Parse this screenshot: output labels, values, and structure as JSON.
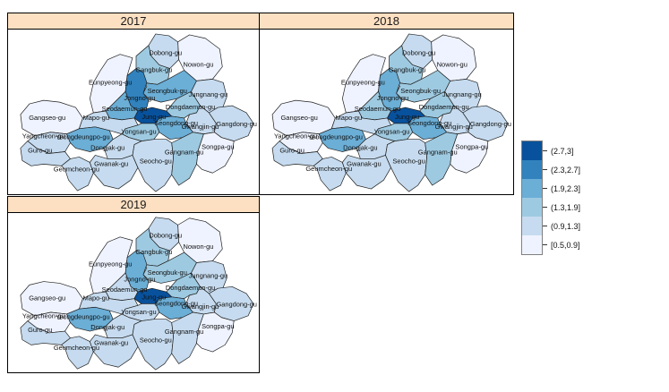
{
  "figure": {
    "background": "#ffffff"
  },
  "facets": [
    {
      "label": "2017"
    },
    {
      "label": "2018"
    },
    {
      "label": "2019"
    }
  ],
  "legend": {
    "items": [
      {
        "label": "(2.7,3]",
        "color": "#08519c"
      },
      {
        "label": "(2.3,2.7]",
        "color": "#3182bd"
      },
      {
        "label": "(1.9,2.3]",
        "color": "#6baed6"
      },
      {
        "label": "(1.3,1.9]",
        "color": "#9ecae1"
      },
      {
        "label": "(0.9,1.3]",
        "color": "#c6dbef"
      },
      {
        "label": "[0.5,0.9]",
        "color": "#eff3ff"
      }
    ]
  },
  "colors": {
    "strip_bg": "#fde0c2",
    "strip_border": "#000000",
    "panel_border": "#000000",
    "district_stroke": "#1f1f1f",
    "legend_border": "#808080",
    "dark_label_text": "#ffffff"
  },
  "chart_data": {
    "type": "choropleth",
    "facets": [
      "2017",
      "2018",
      "2019"
    ],
    "legend_bins_dark_to_light": [
      "(2.7,3]",
      "(2.3,2.7]",
      "(1.9,2.3]",
      "(1.3,1.9]",
      "(0.9,1.3]",
      "[0.5,0.9]"
    ],
    "palette_light_to_dark": [
      "#eff3ff",
      "#c6dbef",
      "#9ecae1",
      "#6baed6",
      "#3182bd",
      "#08519c"
    ],
    "bin_ranges_light_to_dark": [
      "[0.5,0.9]",
      "(0.9,1.3]",
      "(1.3,1.9]",
      "(1.9,2.3]",
      "(2.3,2.7]",
      "(2.7,3]"
    ],
    "districts": [
      {
        "name": "Dobong-gu",
        "bin_index_by_year": {
          "2017": 2,
          "2018": 2,
          "2019": 2
        }
      },
      {
        "name": "Nowon-gu",
        "bin_index_by_year": {
          "2017": 1,
          "2018": 1,
          "2019": 1
        }
      },
      {
        "name": "Gangbuk-gu",
        "bin_index_by_year": {
          "2017": 3,
          "2018": 3,
          "2019": 3
        }
      },
      {
        "name": "Eunpyeong-gu",
        "bin_index_by_year": {
          "2017": 1,
          "2018": 1,
          "2019": 1
        }
      },
      {
        "name": "Seongbuk-gu",
        "bin_index_by_year": {
          "2017": 4,
          "2018": 3,
          "2019": 3
        }
      },
      {
        "name": "Jungnang-gu",
        "bin_index_by_year": {
          "2017": 2,
          "2018": 2,
          "2019": 2
        }
      },
      {
        "name": "Jongno-gu",
        "bin_index_by_year": {
          "2017": 5,
          "2018": 4,
          "2019": 4
        }
      },
      {
        "name": "Seodaemun-gu",
        "bin_index_by_year": {
          "2017": 4,
          "2018": 3,
          "2019": 2
        }
      },
      {
        "name": "Dongdaemun-gu",
        "bin_index_by_year": {
          "2017": 3,
          "2018": 3,
          "2019": 3
        }
      },
      {
        "name": "Jung-gu",
        "bin_index_by_year": {
          "2017": 6,
          "2018": 6,
          "2019": 6
        }
      },
      {
        "name": "Seongdong-gu",
        "bin_index_by_year": {
          "2017": 4,
          "2018": 4,
          "2019": 4
        }
      },
      {
        "name": "Gwangjin-gu",
        "bin_index_by_year": {
          "2017": 2,
          "2018": 2,
          "2019": 2
        }
      },
      {
        "name": "Gangdong-gu",
        "bin_index_by_year": {
          "2017": 2,
          "2018": 2,
          "2019": 2
        }
      },
      {
        "name": "Gangseo-gu",
        "bin_index_by_year": {
          "2017": 1,
          "2018": 1,
          "2019": 1
        }
      },
      {
        "name": "Mapo-gu",
        "bin_index_by_year": {
          "2017": 2,
          "2018": 2,
          "2019": 2
        }
      },
      {
        "name": "Yangcheon-gu",
        "bin_index_by_year": {
          "2017": 2,
          "2018": 1,
          "2019": 1
        }
      },
      {
        "name": "Yeongdeungpo-gu",
        "bin_index_by_year": {
          "2017": 4,
          "2018": 4,
          "2019": 4
        }
      },
      {
        "name": "Yongsan-gu",
        "bin_index_by_year": {
          "2017": 3,
          "2018": 3,
          "2019": 2
        }
      },
      {
        "name": "Guro-gu",
        "bin_index_by_year": {
          "2017": 2,
          "2018": 2,
          "2019": 2
        }
      },
      {
        "name": "Geumcheon-gu",
        "bin_index_by_year": {
          "2017": 2,
          "2018": 2,
          "2019": 2
        }
      },
      {
        "name": "Dongjak-gu",
        "bin_index_by_year": {
          "2017": 2,
          "2018": 2,
          "2019": 2
        }
      },
      {
        "name": "Gwanak-gu",
        "bin_index_by_year": {
          "2017": 2,
          "2018": 2,
          "2019": 2
        }
      },
      {
        "name": "Seocho-gu",
        "bin_index_by_year": {
          "2017": 2,
          "2018": 2,
          "2019": 2
        }
      },
      {
        "name": "Gangnam-gu",
        "bin_index_by_year": {
          "2017": 3,
          "2018": 3,
          "2019": 2
        }
      },
      {
        "name": "Songpa-gu",
        "bin_index_by_year": {
          "2017": 1,
          "2018": 1,
          "2019": 1
        }
      }
    ]
  }
}
